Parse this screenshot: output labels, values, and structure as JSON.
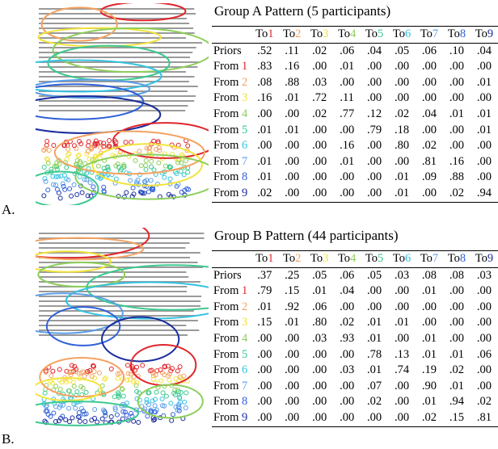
{
  "states": [
    {
      "id": "1",
      "color": "#e0262b"
    },
    {
      "id": "2",
      "color": "#f4a261"
    },
    {
      "id": "3",
      "color": "#f2e33c"
    },
    {
      "id": "4",
      "color": "#8ccf5a"
    },
    {
      "id": "5",
      "color": "#3cc98f"
    },
    {
      "id": "6",
      "color": "#33c3e0"
    },
    {
      "id": "7",
      "color": "#5a9ee8"
    },
    {
      "id": "8",
      "color": "#2f5fd8"
    },
    {
      "id": "9",
      "color": "#1a2d9e"
    }
  ],
  "panels": [
    {
      "label": "A.",
      "title": "Group A Pattern (5 participants)",
      "col_prefix": "To",
      "row_prefix": "From",
      "priors_label": "Priors",
      "priors": [
        ".52",
        ".11",
        ".02",
        ".06",
        ".04",
        ".05",
        ".06",
        ".10",
        ".04"
      ],
      "rows": [
        [
          ".83",
          ".16",
          ".00",
          ".01",
          ".00",
          ".00",
          ".00",
          ".00",
          ".00"
        ],
        [
          ".08",
          ".88",
          ".03",
          ".00",
          ".00",
          ".00",
          ".00",
          ".00",
          ".01"
        ],
        [
          ".16",
          ".01",
          ".72",
          ".11",
          ".00",
          ".00",
          ".00",
          ".00",
          ".00"
        ],
        [
          ".00",
          ".00",
          ".02",
          ".77",
          ".12",
          ".02",
          ".04",
          ".01",
          ".01"
        ],
        [
          ".01",
          ".01",
          ".00",
          ".00",
          ".79",
          ".18",
          ".00",
          ".00",
          ".01"
        ],
        [
          ".00",
          ".00",
          ".00",
          ".16",
          ".00",
          ".80",
          ".02",
          ".00",
          ".00"
        ],
        [
          ".01",
          ".00",
          ".00",
          ".01",
          ".00",
          ".00",
          ".81",
          ".16",
          ".00"
        ],
        [
          ".01",
          ".00",
          ".00",
          ".00",
          ".00",
          ".01",
          ".09",
          ".88",
          ".00"
        ],
        [
          ".02",
          ".00",
          ".00",
          ".00",
          ".00",
          ".01",
          ".00",
          ".02",
          ".94"
        ]
      ]
    },
    {
      "label": "B.",
      "title": "Group B Pattern (44 participants)",
      "col_prefix": "To",
      "row_prefix": "From",
      "priors_label": "Priors",
      "priors": [
        ".37",
        ".25",
        ".05",
        ".06",
        ".05",
        ".03",
        ".08",
        ".08",
        ".03"
      ],
      "rows": [
        [
          ".79",
          ".15",
          ".01",
          ".04",
          ".00",
          ".00",
          ".01",
          ".00",
          ".00"
        ],
        [
          ".01",
          ".92",
          ".06",
          ".00",
          ".00",
          ".00",
          ".00",
          ".00",
          ".00"
        ],
        [
          ".15",
          ".01",
          ".80",
          ".02",
          ".01",
          ".01",
          ".00",
          ".00",
          ".00"
        ],
        [
          ".00",
          ".00",
          ".03",
          ".93",
          ".01",
          ".00",
          ".01",
          ".00",
          ".00"
        ],
        [
          ".00",
          ".00",
          ".00",
          ".00",
          ".78",
          ".13",
          ".01",
          ".01",
          ".06"
        ],
        [
          ".00",
          ".00",
          ".00",
          ".03",
          ".01",
          ".74",
          ".19",
          ".02",
          ".00"
        ],
        [
          ".00",
          ".00",
          ".00",
          ".00",
          ".07",
          ".00",
          ".90",
          ".01",
          ".00"
        ],
        [
          ".00",
          ".00",
          ".00",
          ".00",
          ".02",
          ".00",
          ".01",
          ".94",
          ".02"
        ],
        [
          ".00",
          ".00",
          ".00",
          ".00",
          ".00",
          ".00",
          ".02",
          ".15",
          ".81"
        ]
      ]
    }
  ]
}
